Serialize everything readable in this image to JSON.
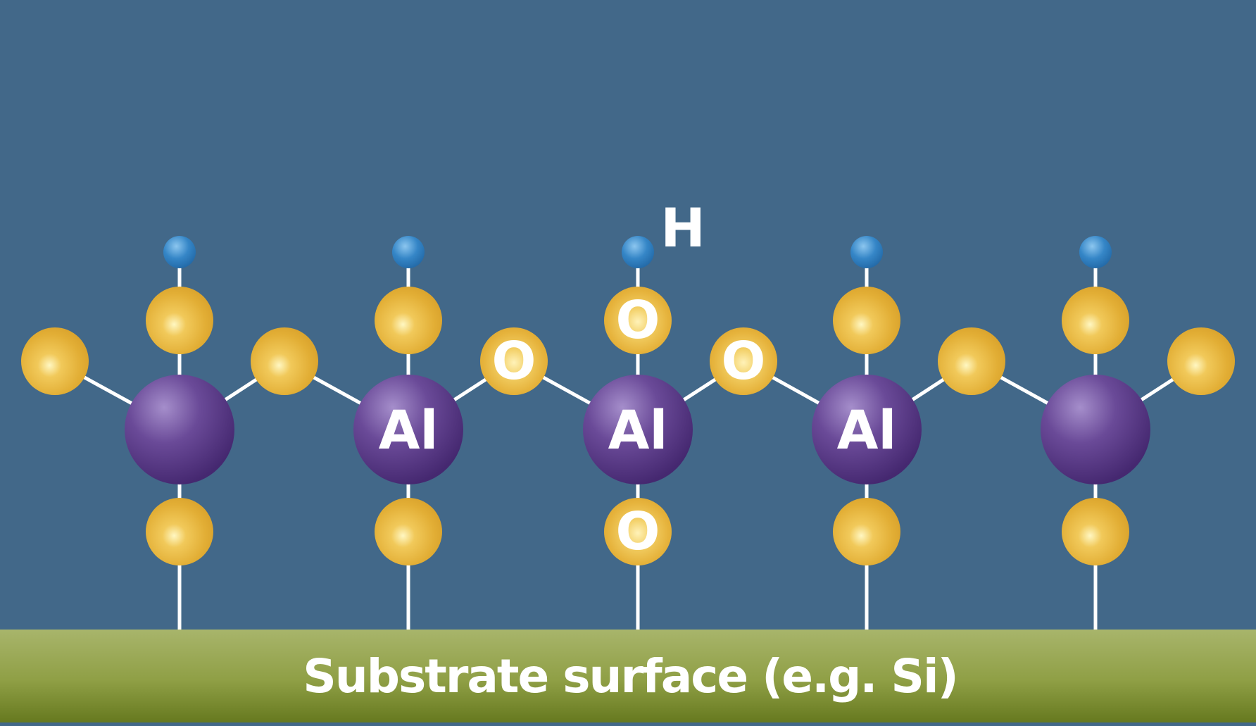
{
  "colors": {
    "background": "#426889",
    "bond": "#ffffff",
    "oxygen": "#e2ae35",
    "aluminum": "#4b2d74",
    "hydrogen": "#2f7fc0",
    "substrate_top": "#a8b56b",
    "substrate_bottom": "#66791f",
    "label_text": "#ffffff"
  },
  "labels": {
    "hydrogen": "H",
    "oxygen": "O",
    "aluminum": "Al",
    "substrate": "Substrate surface (e.g. Si)"
  },
  "atoms": [
    {
      "element": "aluminum",
      "labeled": false
    },
    {
      "element": "aluminum",
      "labeled": true
    },
    {
      "element": "aluminum",
      "labeled": true
    },
    {
      "element": "aluminum",
      "labeled": true
    },
    {
      "element": "aluminum",
      "labeled": false
    }
  ]
}
